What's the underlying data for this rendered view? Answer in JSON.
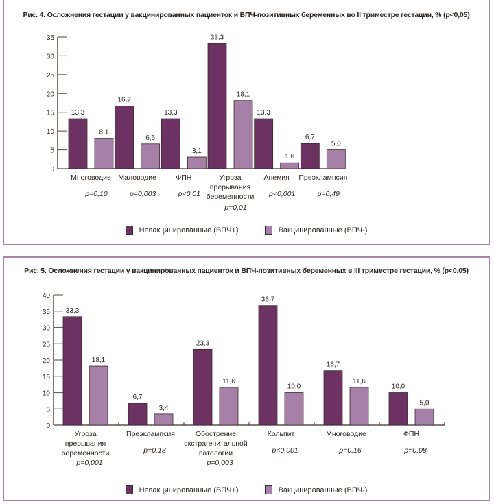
{
  "colors": {
    "unvaccinated": "#6b3262",
    "vaccinated": "#a680a6",
    "border": "#a884a4"
  },
  "chart_data": [
    {
      "type": "bar",
      "title": "Рис. 4. Осложнения гестации у вакцинированных пациенток и ВПЧ-позитивных беременных во II триместре гестации, % (p<0,05)",
      "xlabel": "",
      "ylabel": "",
      "ylim": [
        0,
        35
      ],
      "yticks": [
        0,
        5,
        10,
        15,
        20,
        25,
        30,
        35
      ],
      "ytick_labels": [
        "0",
        "5",
        "10",
        "15",
        "20",
        "25",
        "30",
        "35"
      ],
      "grid": false,
      "legend_position": "bottom-center",
      "categories": [
        [
          "Многоводие"
        ],
        [
          "Маловодие"
        ],
        [
          "ФПН"
        ],
        [
          "Угроза",
          "прерывания",
          "беременности"
        ],
        [
          "Анемия"
        ],
        [
          "Преэклампсия"
        ]
      ],
      "p_values": [
        "p=0,10",
        "p=0,003",
        "p<0,01",
        "p=0,01",
        "p<0,001",
        "p=0,49"
      ],
      "series": [
        {
          "name": "Невакцинированные (ВПЧ+)",
          "values": [
            13.3,
            16.7,
            13.3,
            33.3,
            13.3,
            6.7
          ],
          "labels": [
            "13,3",
            "16,7",
            "13,3",
            "33,3",
            "13,3",
            "6,7"
          ]
        },
        {
          "name": "Вакцинированные (ВПЧ-)",
          "values": [
            8.1,
            6.6,
            3.1,
            18.1,
            1.6,
            5.0
          ],
          "labels": [
            "8,1",
            "6,6",
            "3,1",
            "18,1",
            "1,6",
            "5,0"
          ]
        }
      ]
    },
    {
      "type": "bar",
      "title": "Рис. 5. Осложнения гестации у вакцинированных пациенток и ВПЧ-позитивных беременных в III триместре гестации, % (p<0,05)",
      "xlabel": "",
      "ylabel": "",
      "ylim": [
        0,
        40
      ],
      "yticks": [
        0,
        5,
        10,
        15,
        20,
        25,
        30,
        35,
        40
      ],
      "ytick_labels": [
        "0",
        "5",
        "10",
        "15",
        "20",
        "25",
        "30",
        "35",
        "40"
      ],
      "grid": false,
      "legend_position": "bottom-center",
      "categories": [
        [
          "Угроза",
          "прерывания",
          "беременности"
        ],
        [
          "Преэклампсия"
        ],
        [
          "Обострение",
          "экстрагенитальной",
          "патологии"
        ],
        [
          "Кольпит"
        ],
        [
          "Многоводие"
        ],
        [
          "ФПН"
        ]
      ],
      "p_values": [
        "p=0,001",
        "p=0,18",
        "p=0,003",
        "p<0,001",
        "p=0,16",
        "p=0,08"
      ],
      "series": [
        {
          "name": "Невакцинированные (ВПЧ+)",
          "values": [
            33.3,
            6.7,
            23.3,
            36.7,
            16.7,
            10.0
          ],
          "labels": [
            "33,3",
            "6,7",
            "23,3",
            "36,7",
            "16,7",
            "10,0"
          ]
        },
        {
          "name": "Вакцинированные (ВПЧ-)",
          "values": [
            18.1,
            3.4,
            11.6,
            10.0,
            11.6,
            5.0
          ],
          "labels": [
            "18,1",
            "3,4",
            "11,6",
            "10,0",
            "11,6",
            "5,0"
          ]
        }
      ]
    }
  ]
}
